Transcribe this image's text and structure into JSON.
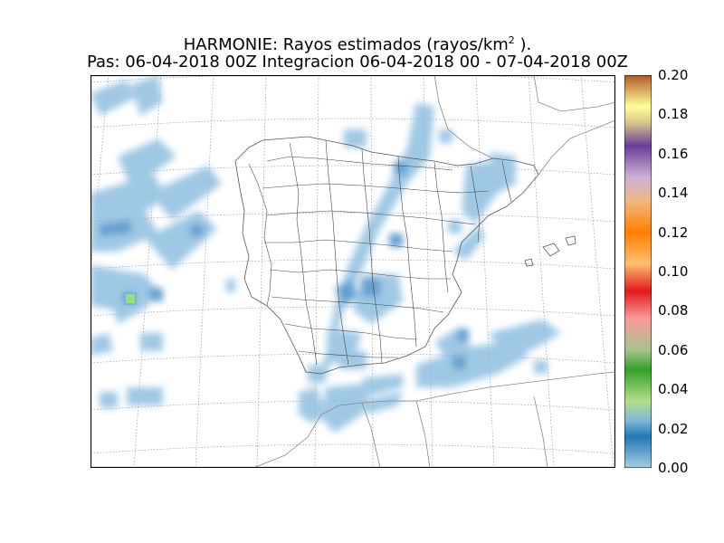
{
  "header": {
    "title_prefix": "HARMONIE: Rayos estimados  (rayos/km",
    "title_sup": "2",
    "title_suffix": " ).",
    "subtitle": "Pas: 06-04-2018 00Z Integracion 06-04-2018 00 - 07-04-2018 00Z"
  },
  "colorbar": {
    "ticks": [
      "0.20",
      "0.18",
      "0.16",
      "0.14",
      "0.12",
      "0.10",
      "0.08",
      "0.06",
      "0.04",
      "0.02",
      "0.00"
    ],
    "min": 0.0,
    "max": 0.2,
    "colors": [
      "#9ecae1",
      "#3182bd",
      "#a1d99b",
      "#31a354",
      "#fc9272",
      "#de2d26",
      "#fdae6b",
      "#fd8d3c",
      "#bcbddc",
      "#756bb1",
      "#ffff99",
      "#b15928"
    ]
  },
  "map": {
    "region": "Iberian Peninsula",
    "field_color": "#7fb3d8",
    "strong_color": "#1f6fb0",
    "peak_color": "#8fd46a"
  }
}
